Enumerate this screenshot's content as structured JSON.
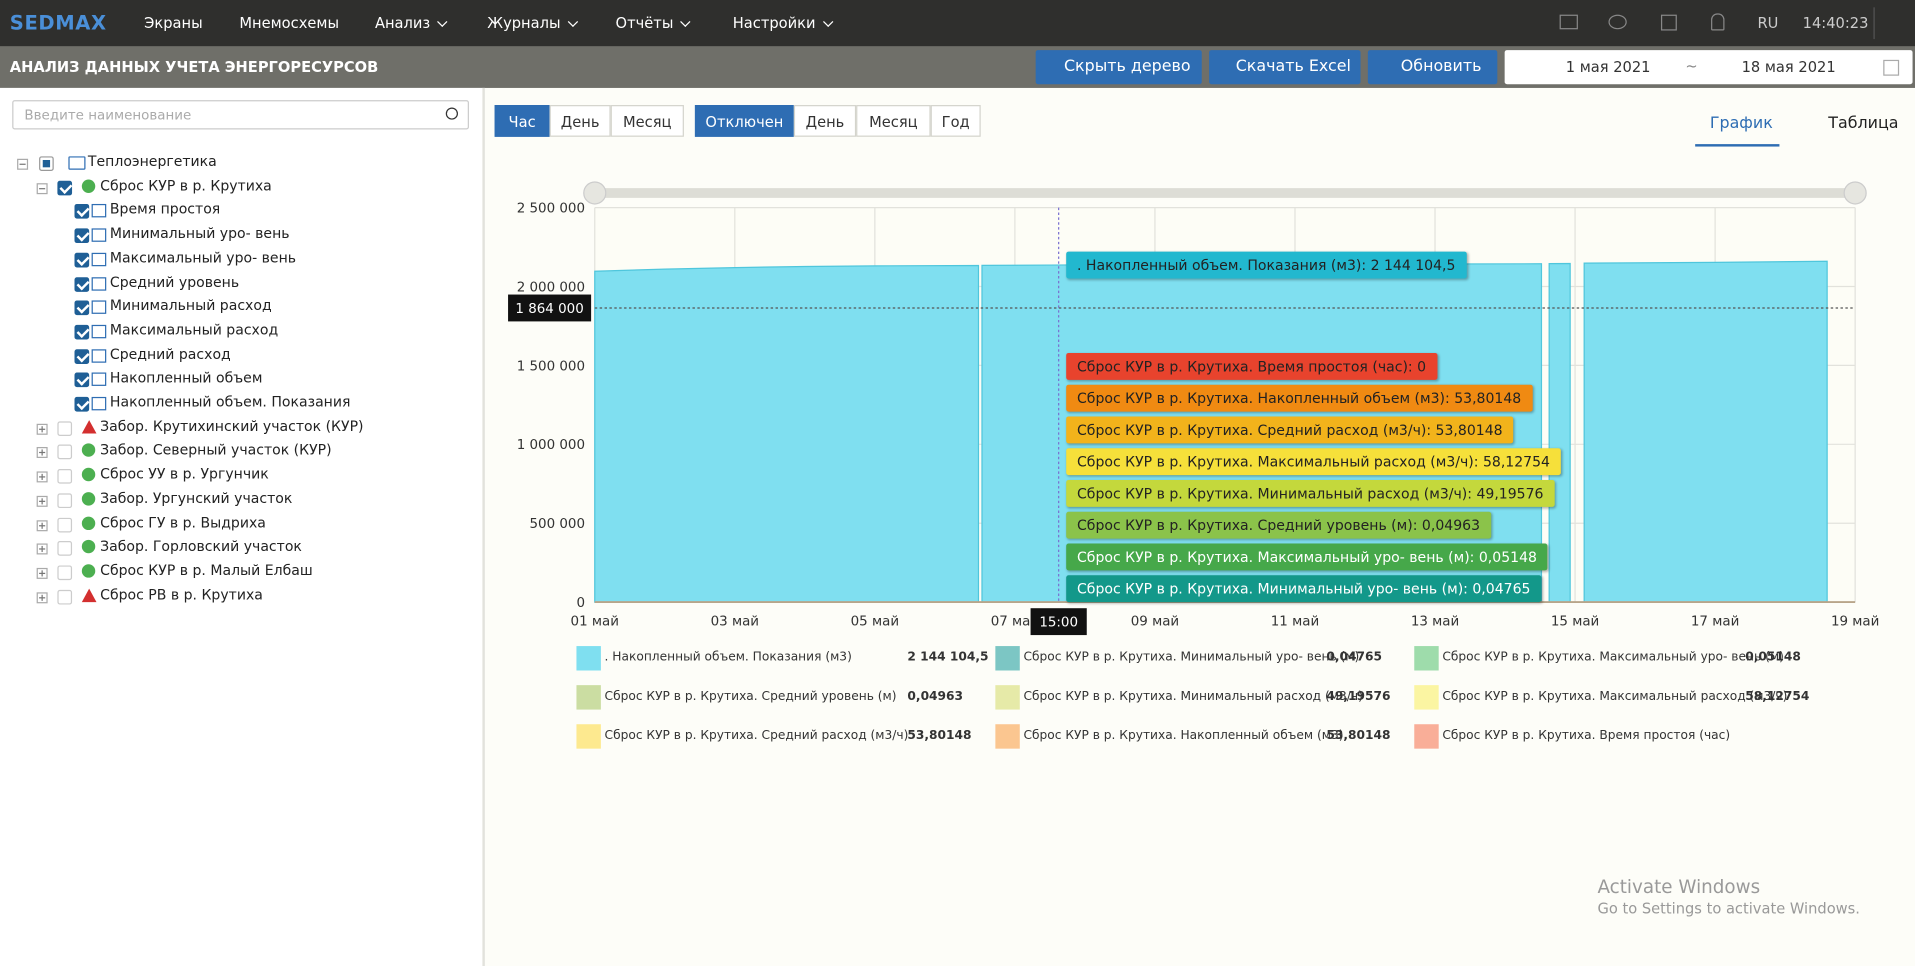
{
  "navbar": {
    "brand": "SEDMAX",
    "menu": [
      "Экраны",
      "Мнемосхемы",
      "Анализ",
      "Журналы",
      "Отчёты",
      "Настройки"
    ],
    "lang": "RU",
    "time": "14:40:23"
  },
  "toolbar": {
    "title": "АНАЛИЗ ДАННЫХ УЧЕТА ЭНЕРГОРЕСУРСОВ",
    "buttons": [
      "Скрыть дерево",
      "Скачать Excel",
      "Обновить"
    ],
    "date_from": "1 мая 2021",
    "date_sep": "~",
    "date_to": "18 мая 2021"
  },
  "tree": {
    "search_placeholder": "Введите наименование",
    "nodes": [
      {
        "label": "Теплоэнергетика",
        "icon": "folder",
        "children": [
          {
            "label": "Сброс КУР в р. Крутиха",
            "icon": "ok",
            "checked": true,
            "children": [
              {
                "label": "Время простоя",
                "checked": true
              },
              {
                "label": "Минимальный уро- вень",
                "checked": true
              },
              {
                "label": "Максимальный уро- вень",
                "checked": true
              },
              {
                "label": "Средний уровень",
                "checked": true
              },
              {
                "label": "Минимальный расход",
                "checked": true
              },
              {
                "label": "Максимальный расход",
                "checked": true
              },
              {
                "label": "Средний расход",
                "checked": true
              },
              {
                "label": "Накопленный объем",
                "checked": true
              },
              {
                "label": "Накопленный объем. Показания",
                "checked": true
              }
            ]
          },
          {
            "label": "Забор. Крутихинский участок (КУР)",
            "icon": "warning"
          },
          {
            "label": "Забор. Северный участок (КУР)",
            "icon": "ok"
          },
          {
            "label": "Сброс УУ в р. Ургунчик",
            "icon": "ok"
          },
          {
            "label": "Забор. Ургунский участок",
            "icon": "ok"
          },
          {
            "label": "Сброс ГУ в р. Выдриха",
            "icon": "ok"
          },
          {
            "label": "Забор. Горловский участок",
            "icon": "ok"
          },
          {
            "label": "Сброс КУР в р. Малый Елбаш",
            "icon": "ok"
          },
          {
            "label": "Сброс РВ в р. Крутиха",
            "icon": "warning"
          }
        ]
      }
    ]
  },
  "period_buttons": [
    "Час",
    "День",
    "Месяц"
  ],
  "group_buttons": [
    "Отключен",
    "День",
    "Месяц",
    "Год"
  ],
  "view_tabs": [
    "График",
    "Таблица"
  ],
  "watermark": {
    "title": "Activate Windows",
    "text": "Go to Settings to activate Windows."
  },
  "chart_data": {
    "type": "area",
    "xlim": [
      1,
      19
    ],
    "xticks": [
      {
        "value": 1,
        "label": "01 май"
      },
      {
        "value": 3,
        "label": "03 май"
      },
      {
        "value": 5,
        "label": "05 май"
      },
      {
        "value": 7,
        "label": "07 май"
      },
      {
        "value": 9,
        "label": "09 май"
      },
      {
        "value": 11,
        "label": "11 май"
      },
      {
        "value": 13,
        "label": "13 май"
      },
      {
        "value": 15,
        "label": "15 май"
      },
      {
        "value": 17,
        "label": "17 май"
      },
      {
        "value": 19,
        "label": "19 май"
      }
    ],
    "ylim": [
      0,
      2500000
    ],
    "yticks": [
      0,
      {
        "value": 500000,
        "label": "500 000"
      },
      {
        "value": 1000000,
        "label": "1 000 000"
      },
      {
        "value": 1500000,
        "label": "1 500 000"
      },
      {
        "value": 2000000,
        "label": "2 000 000"
      },
      {
        "value": 2500000,
        "label": "2 500 000"
      }
    ],
    "grid": true,
    "series": [
      {
        "name": ". Накопленный объем. Показания (м3)",
        "color": "#7fdff0",
        "x": [
          1,
          2,
          3,
          4,
          5,
          6.48,
          6.5,
          6.53,
          7.5,
          9,
          11,
          13,
          14.52,
          14.55,
          14.63,
          14.93,
          15.0,
          15.13,
          17,
          18.6
        ],
        "values": [
          2097000,
          2110000,
          2120000,
          2127000,
          2131000,
          2133000,
          null,
          2134000,
          2136000,
          2140000,
          2142000,
          2143000,
          2144000,
          null,
          2145000,
          2146000,
          null,
          2148000,
          2153000,
          2160000
        ]
      }
    ],
    "crosshair": {
      "x": {
        "value": 7.625,
        "label": "15:00"
      },
      "y": {
        "value": 1864000,
        "label": "1 864 000"
      }
    },
    "tooltips": [
      {
        "text": ". Накопленный объем. Показания (м3): 2 144 104,5",
        "color": "#22b8cf"
      },
      {
        "text": "Сброс КУР в р. Крутиха. Время простоя (час): 0",
        "color": "#e8432d"
      },
      {
        "text": "Сброс КУР в р. Крутиха. Накопленный объем (м3): 53,80148",
        "color": "#f08a12"
      },
      {
        "text": "Сброс КУР в р. Крутиха. Средний расход (м3/ч): 53,80148",
        "color": "#f2b31b"
      },
      {
        "text": "Сброс КУР в р. Крутиха. Максимальный расход (м3/ч): 58,12754",
        "color": "#f6e03a"
      },
      {
        "text": "Сброс КУР в р. Крутиха. Минимальный расход (м3/ч): 49,19576",
        "color": "#c4d83c"
      },
      {
        "text": "Сброс КУР в р. Крутиха. Средний уровень (м): 0,04963",
        "color": "#8bc34a"
      },
      {
        "text": "Сброс КУР в р. Крутиха. Максимальный уро- вень (м): 0,05148",
        "color": "#46a84a"
      },
      {
        "text": "Сброс КУР в р. Крутиха. Минимальный уро- вень (м): 0,04765",
        "color": "#13988a"
      }
    ],
    "legend": [
      {
        "name": ". Накопленный объем. Показания (м3)",
        "color": "#7fdff0",
        "value": "2 144 104,5"
      },
      {
        "name": "Сброс КУР в р. Крутиха. Минимальный уро- вень (м)",
        "color": "#7cc6c4",
        "value": "0,04765"
      },
      {
        "name": "Сброс КУР в р. Крутиха. Максимальный уро- вень (м)",
        "color": "#9edcab",
        "value": "0,05148"
      },
      {
        "name": "Сброс КУР в р. Крутиха. Средний уровень (м)",
        "color": "#cbdda2",
        "value": "0,04963"
      },
      {
        "name": "Сброс КУР в р. Крутиха. Минимальный расход (м3/ч)",
        "color": "#e6eaa8",
        "value": "49,19576"
      },
      {
        "name": "Сброс КУР в р. Крутиха. Максимальный расход (м3/ч)",
        "color": "#fbf5a2",
        "value": "58,12754"
      },
      {
        "name": "Сброс КУР в р. Крутиха. Средний расход (м3/ч)",
        "color": "#fde98f",
        "value": "53,80148"
      },
      {
        "name": "Сброс КУР в р. Крутиха. Накопленный объем (м3)",
        "color": "#fbc690",
        "value": "53,80148"
      },
      {
        "name": "Сброс КУР в р. Крутиха. Время простоя (час)",
        "color": "#f9ae98",
        "value": ""
      }
    ]
  }
}
